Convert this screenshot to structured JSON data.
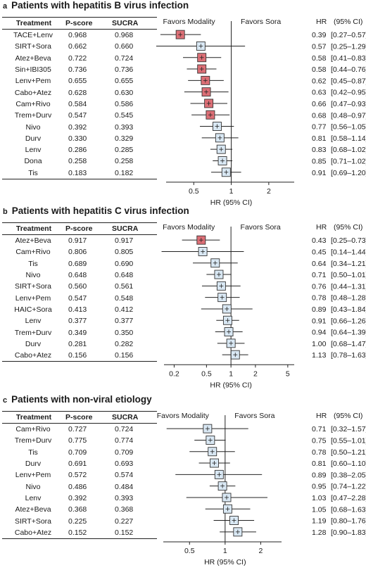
{
  "chart_data": [
    {
      "type": "forest",
      "panel_letter": "a",
      "title": "Patients with hepatitis B virus infection",
      "columns": [
        "Treatment",
        "P-score",
        "SUCRA"
      ],
      "left_label": "Favors Modality",
      "right_label": "Favors Sora",
      "hr_header": "HR",
      "ci_header": "(95% CI)",
      "xlabel": "HR (95% CI)",
      "x_scale": "log",
      "xlim": [
        0.3,
        3.2
      ],
      "ticks": [
        0.5,
        1,
        2
      ],
      "tick_labels": [
        "0.5",
        "1",
        "2"
      ],
      "rows": [
        {
          "treatment": "TACE+Lenv",
          "pscore": "0.968",
          "sucra": "0.968",
          "hr": 0.39,
          "lo": 0.27,
          "hi": 0.57,
          "hr_text": "0.39",
          "ci_text": "[0.27–0.57]",
          "significant": true
        },
        {
          "treatment": "SIRT+Sora",
          "pscore": "0.662",
          "sucra": "0.660",
          "hr": 0.57,
          "lo": 0.25,
          "hi": 1.29,
          "hr_text": "0.57",
          "ci_text": "[0.25–1.29]",
          "significant": false
        },
        {
          "treatment": "Atez+Beva",
          "pscore": "0.722",
          "sucra": "0.724",
          "hr": 0.58,
          "lo": 0.41,
          "hi": 0.83,
          "hr_text": "0.58",
          "ci_text": "[0.41–0.83]",
          "significant": true
        },
        {
          "treatment": "Sin+IBI305",
          "pscore": "0.736",
          "sucra": "0.736",
          "hr": 0.58,
          "lo": 0.44,
          "hi": 0.76,
          "hr_text": "0.58",
          "ci_text": "[0.44–0.76]",
          "significant": true
        },
        {
          "treatment": "Lenv+Pem",
          "pscore": "0.655",
          "sucra": "0.655",
          "hr": 0.62,
          "lo": 0.45,
          "hi": 0.87,
          "hr_text": "0.62",
          "ci_text": "[0.45–0.87]",
          "significant": true
        },
        {
          "treatment": "Cabo+Atez",
          "pscore": "0.628",
          "sucra": "0.630",
          "hr": 0.63,
          "lo": 0.42,
          "hi": 0.95,
          "hr_text": "0.63",
          "ci_text": "[0.42–0.95]",
          "significant": true
        },
        {
          "treatment": "Cam+Rivo",
          "pscore": "0.584",
          "sucra": "0.586",
          "hr": 0.66,
          "lo": 0.47,
          "hi": 0.93,
          "hr_text": "0.66",
          "ci_text": "[0.47–0.93]",
          "significant": true
        },
        {
          "treatment": "Trem+Durv",
          "pscore": "0.547",
          "sucra": "0.545",
          "hr": 0.68,
          "lo": 0.48,
          "hi": 0.97,
          "hr_text": "0.68",
          "ci_text": "[0.48–0.97]",
          "significant": true
        },
        {
          "treatment": "Nivo",
          "pscore": "0.392",
          "sucra": "0.393",
          "hr": 0.77,
          "lo": 0.56,
          "hi": 1.05,
          "hr_text": "0.77",
          "ci_text": "[0.56–1.05]",
          "significant": false
        },
        {
          "treatment": "Durv",
          "pscore": "0.330",
          "sucra": "0.329",
          "hr": 0.81,
          "lo": 0.58,
          "hi": 1.14,
          "hr_text": "0.81",
          "ci_text": "[0.58–1.14]",
          "significant": false
        },
        {
          "treatment": "Lenv",
          "pscore": "0.286",
          "sucra": "0.285",
          "hr": 0.83,
          "lo": 0.68,
          "hi": 1.02,
          "hr_text": "0.83",
          "ci_text": "[0.68–1.02]",
          "significant": false
        },
        {
          "treatment": "Dona",
          "pscore": "0.258",
          "sucra": "0.258",
          "hr": 0.85,
          "lo": 0.71,
          "hi": 1.02,
          "hr_text": "0.85",
          "ci_text": "[0.71–1.02]",
          "significant": false
        },
        {
          "treatment": "Tis",
          "pscore": "0.183",
          "sucra": "0.182",
          "hr": 0.91,
          "lo": 0.69,
          "hi": 1.2,
          "hr_text": "0.91",
          "ci_text": "[0.69–1.20]",
          "significant": false
        }
      ]
    },
    {
      "type": "forest",
      "panel_letter": "b",
      "title": "Patients with hepatitis C virus infection",
      "columns": [
        "Treatment",
        "P-score",
        "SUCRA"
      ],
      "left_label": "Favors Modality",
      "right_label": "Favors Sora",
      "hr_header": "HR",
      "ci_header": "(95% CI)",
      "xlabel": "HR (95% CI)",
      "x_scale": "log",
      "xlim": [
        0.15,
        6.0
      ],
      "ticks": [
        0.2,
        0.5,
        1,
        2,
        5
      ],
      "tick_labels": [
        "0.2",
        "0.5",
        "1",
        "2",
        "5"
      ],
      "rows": [
        {
          "treatment": "Atez+Beva",
          "pscore": "0.917",
          "sucra": "0.917",
          "hr": 0.43,
          "lo": 0.25,
          "hi": 0.73,
          "hr_text": "0.43",
          "ci_text": "[0.25–0.73]",
          "significant": true
        },
        {
          "treatment": "Cam+Rivo",
          "pscore": "0.806",
          "sucra": "0.805",
          "hr": 0.45,
          "lo": 0.14,
          "hi": 1.44,
          "hr_text": "0.45",
          "ci_text": "[0.14–1.44]",
          "significant": false
        },
        {
          "treatment": "Tis",
          "pscore": "0.689",
          "sucra": "0.690",
          "hr": 0.64,
          "lo": 0.34,
          "hi": 1.21,
          "hr_text": "0.64",
          "ci_text": "[0.34–1.21]",
          "significant": false
        },
        {
          "treatment": "Nivo",
          "pscore": "0.648",
          "sucra": "0.648",
          "hr": 0.71,
          "lo": 0.5,
          "hi": 1.01,
          "hr_text": "0.71",
          "ci_text": "[0.50–1.01]",
          "significant": false
        },
        {
          "treatment": "SIRT+Sora",
          "pscore": "0.560",
          "sucra": "0.561",
          "hr": 0.76,
          "lo": 0.44,
          "hi": 1.31,
          "hr_text": "0.76",
          "ci_text": "[0.44–1.31]",
          "significant": false
        },
        {
          "treatment": "Lenv+Pem",
          "pscore": "0.547",
          "sucra": "0.548",
          "hr": 0.78,
          "lo": 0.48,
          "hi": 1.28,
          "hr_text": "0.78",
          "ci_text": "[0.48–1.28]",
          "significant": false
        },
        {
          "treatment": "HAIC+Sora",
          "pscore": "0.413",
          "sucra": "0.412",
          "hr": 0.89,
          "lo": 0.43,
          "hi": 1.84,
          "hr_text": "0.89",
          "ci_text": "[0.43–1.84]",
          "significant": false
        },
        {
          "treatment": "Lenv",
          "pscore": "0.377",
          "sucra": "0.377",
          "hr": 0.91,
          "lo": 0.66,
          "hi": 1.26,
          "hr_text": "0.91",
          "ci_text": "[0.66–1.26]",
          "significant": false
        },
        {
          "treatment": "Trem+Durv",
          "pscore": "0.349",
          "sucra": "0.350",
          "hr": 0.94,
          "lo": 0.64,
          "hi": 1.39,
          "hr_text": "0.94",
          "ci_text": "[0.64–1.39]",
          "significant": false
        },
        {
          "treatment": "Durv",
          "pscore": "0.281",
          "sucra": "0.282",
          "hr": 1.0,
          "lo": 0.68,
          "hi": 1.47,
          "hr_text": "1.00",
          "ci_text": "[0.68–1.47]",
          "significant": false
        },
        {
          "treatment": "Cabo+Atez",
          "pscore": "0.156",
          "sucra": "0.156",
          "hr": 1.13,
          "lo": 0.78,
          "hi": 1.63,
          "hr_text": "1.13",
          "ci_text": "[0.78–1.63]",
          "significant": false
        }
      ]
    },
    {
      "type": "forest",
      "panel_letter": "c",
      "title": "Patients with non-viral etiology",
      "columns": [
        "Treatment",
        "P-score",
        "SUCRA"
      ],
      "left_label": "Favors Modality",
      "right_label": "Favors Sora",
      "hr_header": "HR",
      "ci_header": "(95% CI)",
      "xlabel": "HR (95% CI)",
      "x_scale": "log",
      "xlim": [
        0.3,
        3.0
      ],
      "ticks": [
        0.5,
        1,
        2
      ],
      "tick_labels": [
        "0.5",
        "1",
        "2"
      ],
      "rows": [
        {
          "treatment": "Cam+Rivo",
          "pscore": "0.727",
          "sucra": "0.724",
          "hr": 0.71,
          "lo": 0.32,
          "hi": 1.57,
          "hr_text": "0.71",
          "ci_text": "[0.32–1.57]",
          "significant": false
        },
        {
          "treatment": "Trem+Durv",
          "pscore": "0.775",
          "sucra": "0.774",
          "hr": 0.75,
          "lo": 0.55,
          "hi": 1.01,
          "hr_text": "0.75",
          "ci_text": "[0.55–1.01]",
          "significant": false
        },
        {
          "treatment": "Tis",
          "pscore": "0.709",
          "sucra": "0.709",
          "hr": 0.78,
          "lo": 0.5,
          "hi": 1.21,
          "hr_text": "0.78",
          "ci_text": "[0.50–1.21]",
          "significant": false
        },
        {
          "treatment": "Durv",
          "pscore": "0.691",
          "sucra": "0.693",
          "hr": 0.81,
          "lo": 0.6,
          "hi": 1.1,
          "hr_text": "0.81",
          "ci_text": "[0.60–1.10]",
          "significant": false
        },
        {
          "treatment": "Lenv+Pem",
          "pscore": "0.572",
          "sucra": "0.574",
          "hr": 0.89,
          "lo": 0.38,
          "hi": 2.05,
          "hr_text": "0.89",
          "ci_text": "[0.38–2.05]",
          "significant": false
        },
        {
          "treatment": "Nivo",
          "pscore": "0.486",
          "sucra": "0.484",
          "hr": 0.95,
          "lo": 0.74,
          "hi": 1.22,
          "hr_text": "0.95",
          "ci_text": "[0.74–1.22]",
          "significant": false
        },
        {
          "treatment": "Lenv",
          "pscore": "0.392",
          "sucra": "0.393",
          "hr": 1.03,
          "lo": 0.47,
          "hi": 2.28,
          "hr_text": "1.03",
          "ci_text": "[0.47–2.28]",
          "significant": false
        },
        {
          "treatment": "Atez+Beva",
          "pscore": "0.368",
          "sucra": "0.368",
          "hr": 1.05,
          "lo": 0.68,
          "hi": 1.63,
          "hr_text": "1.05",
          "ci_text": "[0.68–1.63]",
          "significant": false
        },
        {
          "treatment": "SIRT+Sora",
          "pscore": "0.225",
          "sucra": "0.227",
          "hr": 1.19,
          "lo": 0.8,
          "hi": 1.76,
          "hr_text": "1.19",
          "ci_text": "[0.80–1.76]",
          "significant": false
        },
        {
          "treatment": "Cabo+Atez",
          "pscore": "0.152",
          "sucra": "0.152",
          "hr": 1.28,
          "lo": 0.9,
          "hi": 1.83,
          "hr_text": "1.28",
          "ci_text": "[0.90–1.83]",
          "significant": false
        }
      ]
    }
  ],
  "colors": {
    "significant_fill": "#dd6f76",
    "nonsignificant_fill": "#d9e8f4",
    "box_stroke": "#333333",
    "line": "#222222"
  }
}
